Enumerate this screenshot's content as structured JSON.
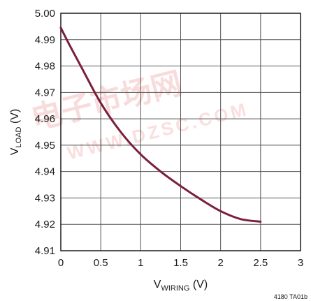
{
  "chart_data": {
    "type": "line",
    "title": "",
    "xlabel": {
      "main": "V",
      "sub": "WIRING",
      "unit": " (V)"
    },
    "ylabel": {
      "main": "V",
      "sub": "LOAD",
      "unit": " (V)"
    },
    "xlim": [
      0,
      3
    ],
    "ylim": [
      4.91,
      5.0
    ],
    "grid": true,
    "x_ticks": [
      "0",
      "0.5",
      "1",
      "1.5",
      "2",
      "2.5",
      "3"
    ],
    "y_ticks": [
      "4.91",
      "4.92",
      "4.93",
      "4.94",
      "4.95",
      "4.96",
      "4.97",
      "4.98",
      "4.99",
      "5.00"
    ],
    "series": [
      {
        "color": "#7a1f3a",
        "x": [
          0,
          0.1,
          0.25,
          0.5,
          0.75,
          1.0,
          1.25,
          1.5,
          1.75,
          2.0,
          2.25,
          2.5
        ],
        "y": [
          4.9945,
          4.9885,
          4.98,
          4.966,
          4.955,
          4.9465,
          4.94,
          4.9345,
          4.9295,
          4.925,
          4.922,
          4.921
        ]
      }
    ],
    "figure_id": "4180 TA01b",
    "watermark": {
      "cjk": "电子市场网",
      "latin": "WWW.DZSC.COM",
      "color": "#f4c0c0"
    }
  }
}
